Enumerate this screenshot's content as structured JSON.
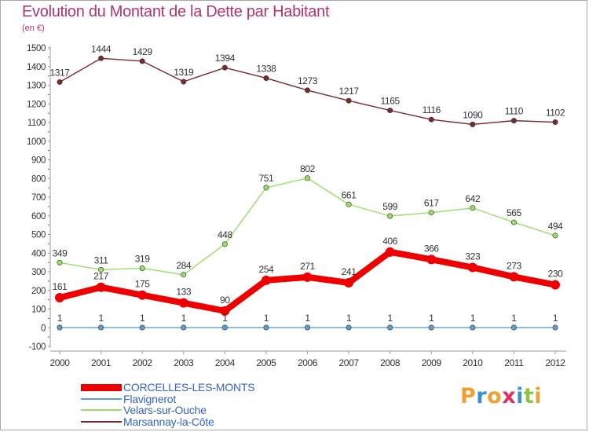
{
  "header": {
    "title": "Evolution du Montant de la Dette par Habitant",
    "subtitle": "(en €)"
  },
  "brand": {
    "letters": [
      "P",
      "r",
      "o",
      "x",
      "i",
      "t",
      "i"
    ],
    "colors": [
      "#f0a030",
      "#3a8fd0",
      "#f0a030",
      "#e03060",
      "#3a8fd0",
      "#8fc43e",
      "#f0a030"
    ]
  },
  "chart_data": {
    "type": "line",
    "title": "Evolution du Montant de la Dette par Habitant",
    "subtitle": "(en €)",
    "xlabel": "",
    "ylabel": "",
    "x": [
      "2000",
      "2001",
      "2002",
      "2003",
      "2004",
      "2005",
      "2006",
      "2007",
      "2008",
      "2009",
      "2010",
      "2011",
      "2012"
    ],
    "ylim": [
      -100,
      1500
    ],
    "yticks": [
      -100,
      0,
      100,
      200,
      300,
      400,
      500,
      600,
      700,
      800,
      900,
      1000,
      1100,
      1200,
      1300,
      1400,
      1500
    ],
    "grid": false,
    "legend_position": "bottom-left",
    "series": [
      {
        "name": "CORCELLES-LES-MONTS",
        "values": [
          161,
          217,
          175,
          133,
          90,
          254,
          271,
          241,
          406,
          366,
          323,
          273,
          230
        ],
        "labels": [
          "161",
          "217",
          "175",
          "133",
          "90",
          "254",
          "271",
          "241",
          "406",
          "366",
          "323",
          "273",
          "230"
        ],
        "color": "#ee0000",
        "emphasis": true
      },
      {
        "name": "Flavignerot",
        "values": [
          1,
          1,
          1,
          1,
          1,
          1,
          1,
          1,
          1,
          1,
          1,
          1,
          1
        ],
        "labels": [
          "1",
          "1",
          "1",
          "1",
          "1",
          "1",
          "1",
          "1",
          "1",
          "1",
          "1",
          "1",
          "1"
        ],
        "color": "#5b9fd0",
        "emphasis": false
      },
      {
        "name": "Velars-sur-Ouche",
        "values": [
          349,
          311,
          319,
          284,
          448,
          751,
          802,
          661,
          599,
          617,
          642,
          565,
          494
        ],
        "labels": [
          "349",
          "311",
          "319",
          "284",
          "448",
          "751",
          "802",
          "661",
          "599",
          "617",
          "642",
          "565",
          "494"
        ],
        "color": "#99dd66",
        "emphasis": false
      },
      {
        "name": "Marsannay-la-Côte",
        "values": [
          1317,
          1444,
          1429,
          1319,
          1394,
          1338,
          1273,
          1217,
          1165,
          1116,
          1090,
          1110,
          1102
        ],
        "labels": [
          "1317",
          "1444",
          "1429",
          "1319",
          "1394",
          "1338",
          "1273",
          "1217",
          "1165",
          "1116",
          "1090",
          "1110",
          "1102"
        ],
        "color": "#7a2a2a",
        "emphasis": false
      }
    ]
  }
}
